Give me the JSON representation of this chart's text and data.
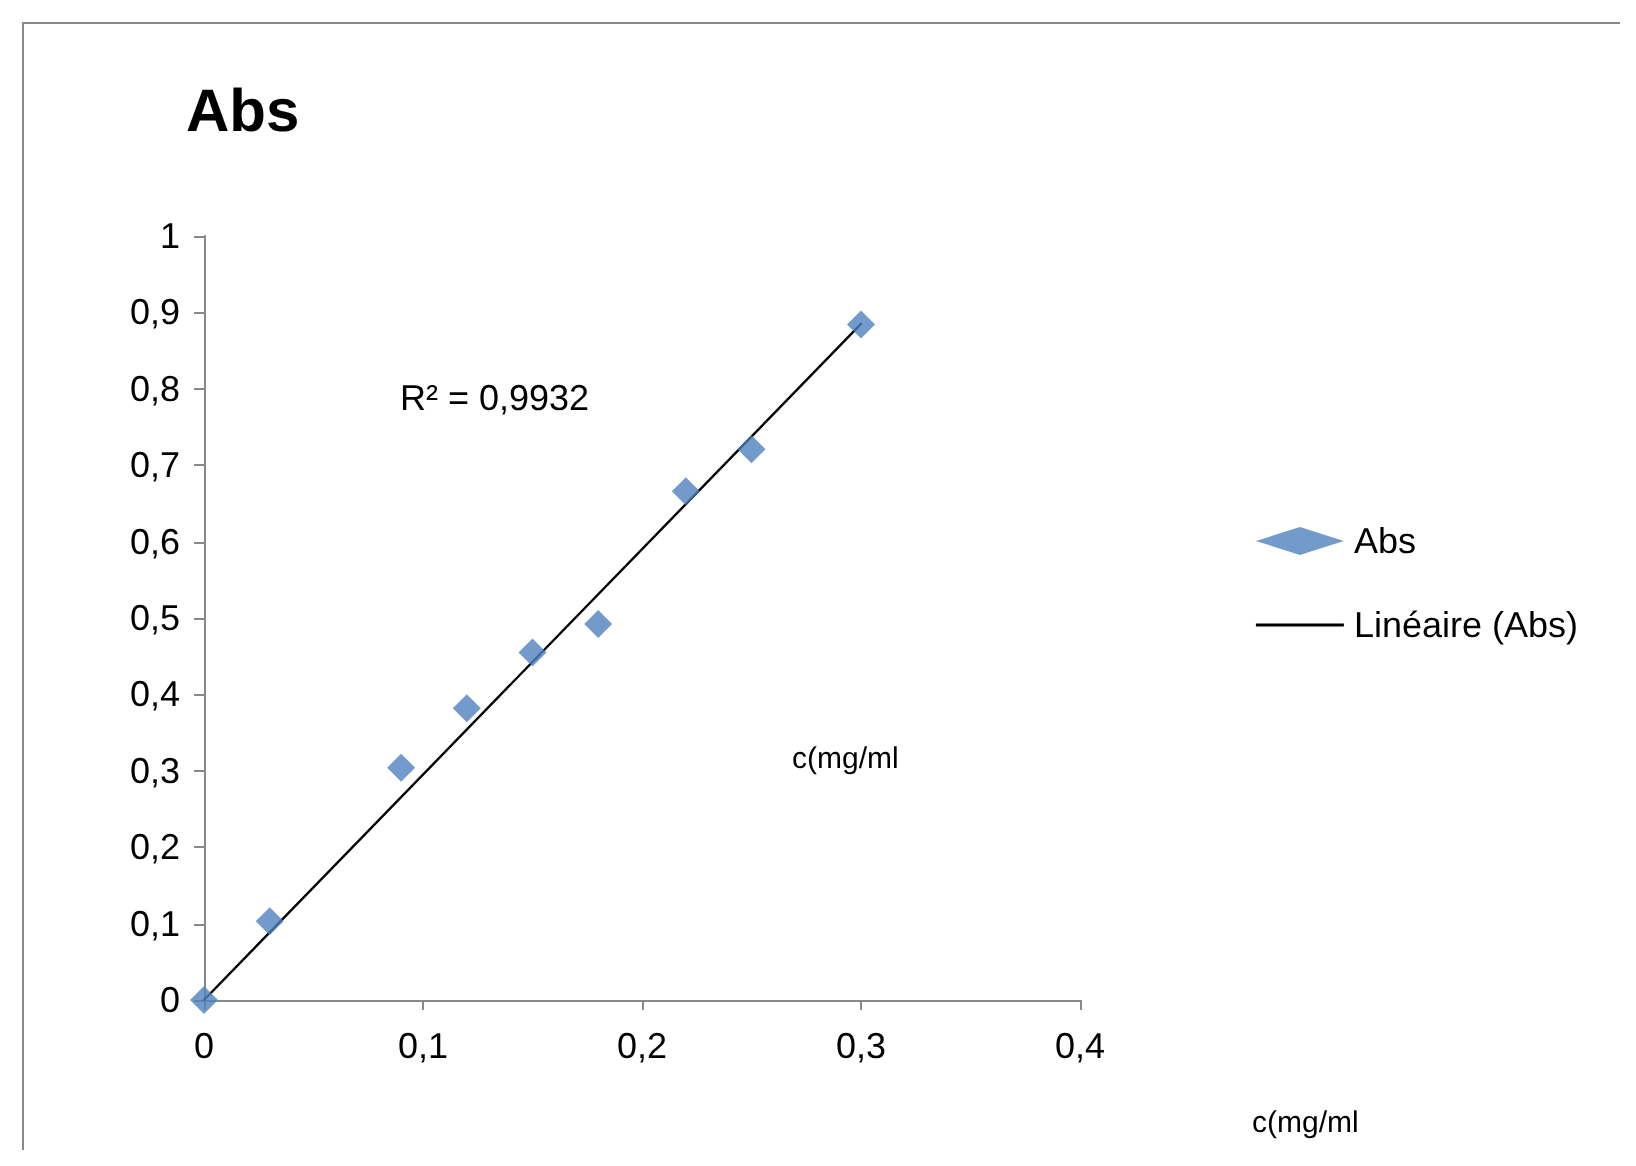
{
  "chart_data": {
    "type": "scatter",
    "title": "Abs",
    "annotations": [
      "R² = 0,9932",
      "c(mg/ml",
      "c(mg/ml"
    ],
    "series": [
      {
        "name": "Abs",
        "color": "#4f81bd",
        "marker": "diamond",
        "x": [
          0,
          0.03,
          0.09,
          0.12,
          0.15,
          0.18,
          0.22,
          0.25,
          0.3
        ],
        "values": [
          0,
          0.103,
          0.304,
          0.382,
          0.455,
          0.492,
          0.666,
          0.721,
          0.884
        ]
      },
      {
        "name": "Linéaire (Abs)",
        "type": "line",
        "color": "#000000",
        "marker": "none",
        "line_style": "solid",
        "x": [
          0,
          0.3
        ],
        "values": [
          0,
          0.885
        ]
      }
    ],
    "xlim": [
      0,
      0.4
    ],
    "xticks": [
      0,
      {
        "value": 0.1,
        "label": "0,1"
      },
      {
        "value": 0.2,
        "label": "0,2"
      },
      {
        "value": 0.3,
        "label": "0,3"
      },
      {
        "value": 0.4,
        "label": "0,4"
      }
    ],
    "ylim": [
      0,
      1
    ],
    "yticks": [
      0,
      {
        "value": 0.1,
        "label": "0,1"
      },
      {
        "value": 0.2,
        "label": "0,2"
      },
      {
        "value": 0.3,
        "label": "0,3"
      },
      {
        "value": 0.4,
        "label": "0,4"
      },
      {
        "value": 0.5,
        "label": "0,5"
      },
      {
        "value": 0.6,
        "label": "0,6"
      },
      {
        "value": 0.7,
        "label": "0,7"
      },
      {
        "value": 0.8,
        "label": "0,8"
      },
      {
        "value": 0.9,
        "label": "0,9"
      },
      1
    ],
    "grid": false,
    "legend": "right"
  }
}
